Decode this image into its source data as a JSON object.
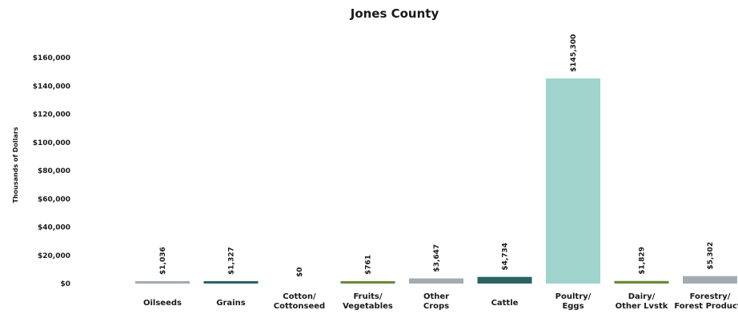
{
  "chart_data": {
    "type": "bar",
    "title": "Jones County",
    "ylabel": "Thousands of Dollars",
    "xlabel": "",
    "ylim": [
      0,
      160000
    ],
    "yticks": [
      0,
      20000,
      40000,
      60000,
      80000,
      100000,
      120000,
      140000,
      160000
    ],
    "ytick_labels": [
      "$0",
      "$20,000",
      "$40,000",
      "$60,000",
      "$80,000",
      "$100,000",
      "$120,000",
      "$140,000",
      "$160,000"
    ],
    "grid": false,
    "categories": [
      [
        "Oilseeds"
      ],
      [
        "Grains"
      ],
      [
        "Cotton/",
        "Cottonseed"
      ],
      [
        "Fruits/",
        "Vegetables"
      ],
      [
        "Other",
        "Crops"
      ],
      [
        "Cattle"
      ],
      [
        "Poultry/",
        "Eggs"
      ],
      [
        "Dairy/",
        "Other Lvstk"
      ],
      [
        "Forestry/",
        "Forest Products"
      ]
    ],
    "values": [
      1036,
      1327,
      0,
      761,
      3647,
      4734,
      145300,
      1829,
      5302
    ],
    "data_labels": [
      "$1,036",
      "$1,327",
      "$0",
      "$761",
      "$3,647",
      "$4,734",
      "$145,300",
      "$1,829",
      "$5,302"
    ],
    "colors": [
      "#a3abb3",
      "#2a6461",
      "#a3abb3",
      "#6a8a36",
      "#a3abb3",
      "#2a6461",
      "#9fd3cb",
      "#6a8a36",
      "#a3abb3"
    ]
  }
}
